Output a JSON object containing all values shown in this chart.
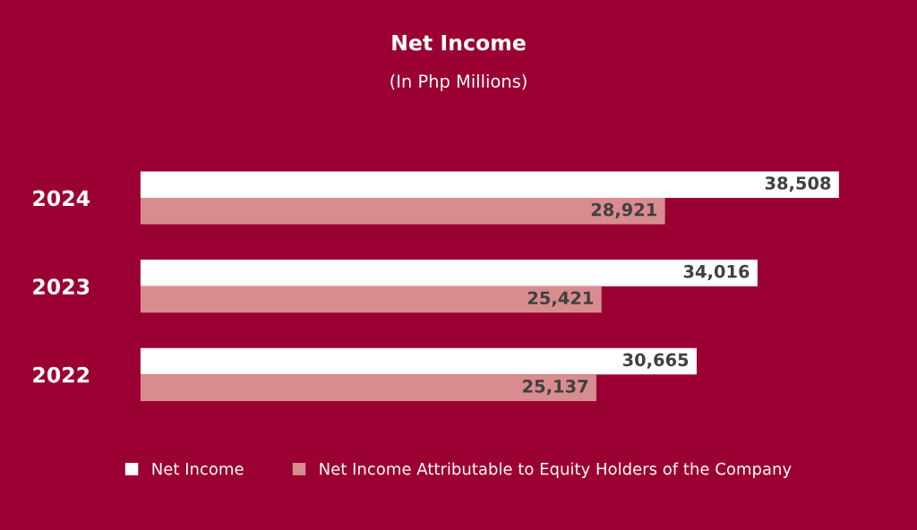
{
  "chart_data": {
    "type": "bar",
    "orientation": "horizontal",
    "title": "Net Income",
    "subtitle": "(In Php Millions)",
    "categories": [
      "2024",
      "2023",
      "2022"
    ],
    "series": [
      {
        "name": "Net Income",
        "color": "#ffffff",
        "values": [
          38508,
          34016,
          30665
        ],
        "value_labels": [
          "38,508",
          "34,016",
          "30,665"
        ]
      },
      {
        "name": "Net Income Attributable to Equity Holders of the Company",
        "color": "#d98c8f",
        "values": [
          28921,
          25421,
          25137
        ],
        "value_labels": [
          "28,921",
          "25,421",
          "25,137"
        ]
      }
    ],
    "legend": "bottom",
    "grid": false,
    "tick_labels": "y"
  }
}
